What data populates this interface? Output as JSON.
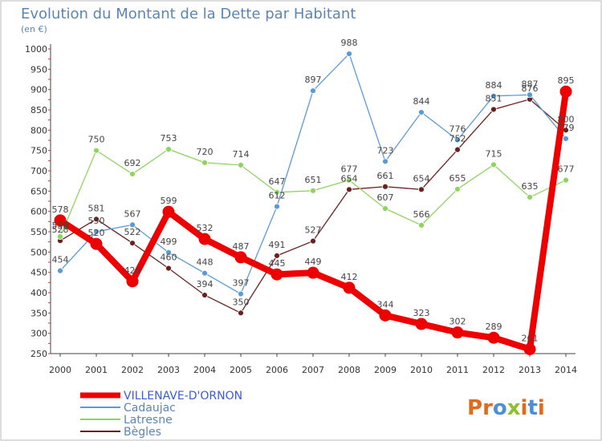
{
  "chart_data": {
    "type": "line",
    "title": "Evolution du Montant de la Dette par Habitant",
    "subtitle": "(en €)",
    "x": [
      "2000",
      "2001",
      "2002",
      "2003",
      "2004",
      "2005",
      "2006",
      "2007",
      "2008",
      "2009",
      "2010",
      "2011",
      "2012",
      "2013",
      "2014"
    ],
    "yticks": [
      250,
      300,
      350,
      400,
      450,
      500,
      550,
      600,
      650,
      700,
      750,
      800,
      850,
      900,
      950,
      1000
    ],
    "ylim": [
      250,
      1000
    ],
    "grid": false,
    "legend_position": "bottom-left",
    "series": [
      {
        "name": "VILLENAVE-D'ORNON",
        "color": "#ee0000",
        "values": [
          578,
          520,
          428,
          599,
          532,
          487,
          445,
          449,
          412,
          344,
          323,
          302,
          289,
          261,
          895
        ]
      },
      {
        "name": "Cadaujac",
        "color": "#5b9bd5",
        "values": [
          454,
          550,
          567,
          499,
          448,
          397,
          612,
          897,
          988,
          723,
          844,
          776,
          884,
          887,
          779
        ]
      },
      {
        "name": "Latresne",
        "color": "#8fd460",
        "values": [
          538,
          750,
          692,
          753,
          720,
          714,
          647,
          651,
          677,
          607,
          566,
          655,
          715,
          635,
          677
        ]
      },
      {
        "name": "Bègles",
        "color": "#6b1f1f",
        "values": [
          528,
          581,
          522,
          460,
          394,
          350,
          491,
          527,
          654,
          661,
          654,
          752,
          851,
          876,
          800
        ]
      }
    ]
  },
  "brand": {
    "logo_text": "Proxiti",
    "logo_letters": [
      "P",
      "r",
      "o",
      "x",
      "i",
      "t",
      "i"
    ],
    "logo_colors": [
      "#e06b1c",
      "#e06b1c",
      "#4a90d9",
      "#8fbf2f",
      "#e06b1c",
      "#4a90d9",
      "#e06b1c"
    ]
  }
}
